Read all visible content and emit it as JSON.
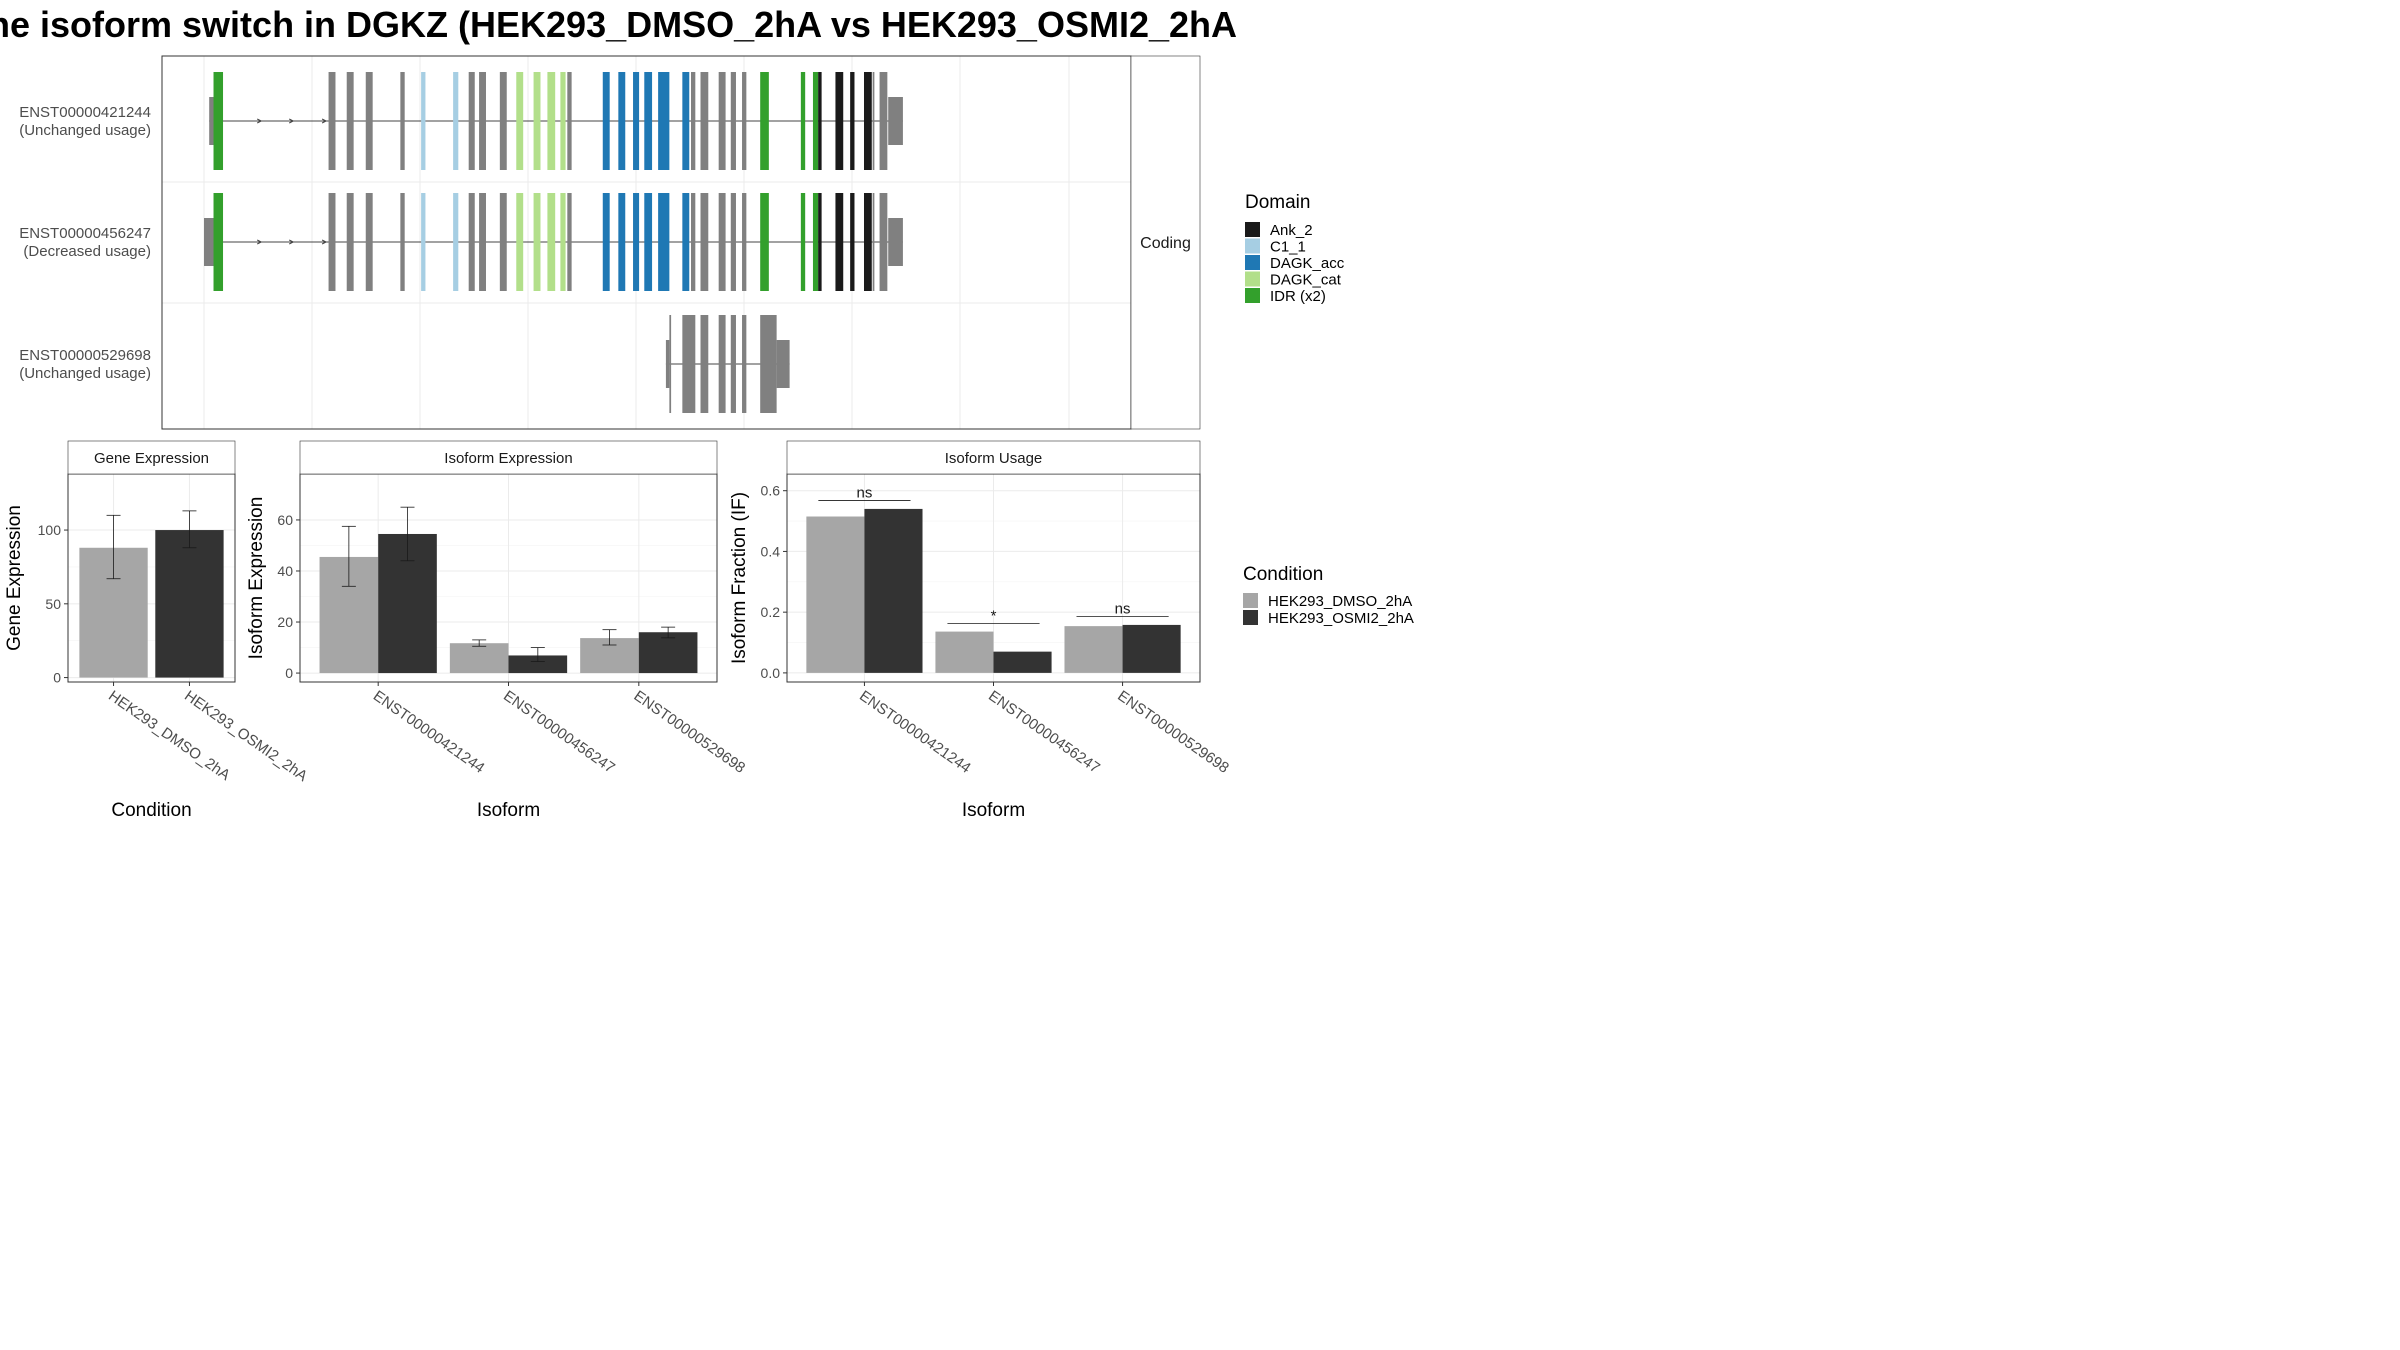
{
  "title": "he isoform switch in DGKZ (HEK293_DMSO_2hA vs HEK293_OSMI2_2hA",
  "colors": {
    "condition_a": "#a6a6a6",
    "condition_b": "#333333",
    "exon_default": "#808080",
    "intron": "#444444"
  },
  "chart_data": [
    {
      "type": "gene-structure",
      "panel_label": "Coding",
      "x_extent": [
        0,
        1000
      ],
      "isoforms": [
        {
          "id": "ENST00000421244",
          "status": "(Unchanged usage)",
          "span": [
            6,
            808
          ],
          "utr": [
            [
              6,
              12
            ],
            [
              791,
              808
            ]
          ],
          "exons": [
            [
              11,
              22,
              "IDR (x2)"
            ],
            [
              144,
              152,
              ""
            ],
            [
              165,
              173,
              ""
            ],
            [
              187,
              195,
              ""
            ],
            [
              227,
              232,
              ""
            ],
            [
              251,
              256,
              "C1_1"
            ],
            [
              288,
              294,
              "C1_1"
            ],
            [
              306,
              313,
              ""
            ],
            [
              318,
              326,
              ""
            ],
            [
              342,
              350,
              ""
            ],
            [
              361,
              369,
              "DAGK_cat"
            ],
            [
              381,
              389,
              "DAGK_cat"
            ],
            [
              397,
              406,
              "DAGK_cat"
            ],
            [
              412,
              418,
              "DAGK_cat"
            ],
            [
              420,
              425,
              ""
            ],
            [
              461,
              469,
              "DAGK_acc"
            ],
            [
              479,
              487,
              "DAGK_acc"
            ],
            [
              496,
              503,
              "DAGK_acc"
            ],
            [
              509,
              518,
              "DAGK_acc"
            ],
            [
              525,
              538,
              "DAGK_acc"
            ],
            [
              553,
              561,
              "DAGK_acc"
            ],
            [
              563,
              568,
              ""
            ],
            [
              574,
              583,
              ""
            ],
            [
              595,
              603,
              ""
            ],
            [
              609,
              615,
              ""
            ],
            [
              622,
              627,
              ""
            ],
            [
              643,
              653,
              "IDR (x2)"
            ],
            [
              690,
              695,
              "IDR (x2)"
            ],
            [
              704,
              710,
              "IDR (x2)"
            ],
            [
              710,
              714,
              "Ank_2"
            ],
            [
              730,
              739,
              "Ank_2"
            ],
            [
              747,
              752,
              "Ank_2"
            ],
            [
              763,
              772,
              "Ank_2"
            ],
            [
              773,
              775,
              ""
            ],
            [
              781,
              790,
              ""
            ]
          ]
        },
        {
          "id": "ENST00000456247",
          "status": "(Decreased usage)",
          "span": [
            0,
            808
          ],
          "utr": [
            [
              0,
              12
            ],
            [
              791,
              808
            ]
          ],
          "exons": [
            [
              11,
              22,
              "IDR (x2)"
            ],
            [
              144,
              152,
              ""
            ],
            [
              165,
              173,
              ""
            ],
            [
              187,
              195,
              ""
            ],
            [
              227,
              232,
              ""
            ],
            [
              251,
              256,
              "C1_1"
            ],
            [
              288,
              294,
              "C1_1"
            ],
            [
              306,
              313,
              ""
            ],
            [
              318,
              326,
              ""
            ],
            [
              342,
              350,
              ""
            ],
            [
              361,
              369,
              "DAGK_cat"
            ],
            [
              381,
              389,
              "DAGK_cat"
            ],
            [
              397,
              406,
              "DAGK_cat"
            ],
            [
              412,
              418,
              "DAGK_cat"
            ],
            [
              420,
              425,
              ""
            ],
            [
              461,
              469,
              "DAGK_acc"
            ],
            [
              479,
              487,
              "DAGK_acc"
            ],
            [
              496,
              503,
              "DAGK_acc"
            ],
            [
              509,
              518,
              "DAGK_acc"
            ],
            [
              525,
              538,
              "DAGK_acc"
            ],
            [
              553,
              561,
              "DAGK_acc"
            ],
            [
              563,
              568,
              ""
            ],
            [
              574,
              583,
              ""
            ],
            [
              595,
              603,
              ""
            ],
            [
              609,
              615,
              ""
            ],
            [
              622,
              627,
              ""
            ],
            [
              643,
              653,
              "IDR (x2)"
            ],
            [
              690,
              695,
              "IDR (x2)"
            ],
            [
              704,
              710,
              "IDR (x2)"
            ],
            [
              710,
              714,
              "Ank_2"
            ],
            [
              730,
              739,
              "Ank_2"
            ],
            [
              747,
              752,
              "Ank_2"
            ],
            [
              763,
              772,
              "Ank_2"
            ],
            [
              773,
              775,
              ""
            ],
            [
              781,
              790,
              ""
            ]
          ]
        },
        {
          "id": "ENST00000529698",
          "status": "(Unchanged usage)",
          "span": [
            534,
            677
          ],
          "utr": [
            [
              534,
              538
            ],
            [
              662,
              677
            ]
          ],
          "exons": [
            [
              538,
              540,
              ""
            ],
            [
              553,
              568,
              ""
            ],
            [
              574,
              583,
              ""
            ],
            [
              595,
              603,
              ""
            ],
            [
              609,
              615,
              ""
            ],
            [
              622,
              627,
              ""
            ],
            [
              643,
              662,
              ""
            ]
          ]
        }
      ],
      "legend": {
        "title": "Domain",
        "items": [
          {
            "label": "Ank_2",
            "color": "#1a1a1a"
          },
          {
            "label": "C1_1",
            "color": "#a6cee3"
          },
          {
            "label": "DAGK_acc",
            "color": "#1f78b4"
          },
          {
            "label": "DAGK_cat",
            "color": "#b2df8a"
          },
          {
            "label": "IDR (x2)",
            "color": "#33a02c"
          }
        ]
      }
    },
    {
      "type": "bar",
      "strip": "Gene Expression",
      "xlabel": "Condition",
      "ylabel": "Gene Expression",
      "ylim": [
        -3,
        138
      ],
      "yticks": [
        0,
        50,
        100
      ],
      "categories": [
        "HEK293_DMSO_2hA",
        "HEK293_OSMI2_2hA"
      ],
      "series": [
        {
          "values": [
            88,
            100
          ],
          "errors": [
            [
              67,
              110
            ],
            [
              88,
              113
            ]
          ]
        }
      ],
      "bar_color_by_category": true
    },
    {
      "type": "bar",
      "strip": "Isoform Expression",
      "xlabel": "Isoform",
      "ylabel": "Isoform Expression",
      "ylim": [
        -3.5,
        78
      ],
      "yticks": [
        0,
        20,
        40,
        60
      ],
      "categories": [
        "ENST00000421244",
        "ENST00000456247",
        "ENST00000529698"
      ],
      "series": [
        {
          "name": "HEK293_DMSO_2hA",
          "values": [
            45.5,
            11.7,
            13.7
          ],
          "errors": [
            [
              34,
              57.5
            ],
            [
              10.5,
              13
            ],
            [
              11,
              17
            ]
          ]
        },
        {
          "name": "HEK293_OSMI2_2hA",
          "values": [
            54.5,
            6.9,
            16
          ],
          "errors": [
            [
              44,
              65
            ],
            [
              4.5,
              10
            ],
            [
              13.8,
              18
            ]
          ]
        }
      ]
    },
    {
      "type": "bar",
      "strip": "Isoform Usage",
      "xlabel": "Isoform",
      "ylabel": "Isoform Fraction (IF)",
      "ylim": [
        -0.03,
        0.655
      ],
      "yticks": [
        "0.0",
        "0.2",
        "0.4",
        "0.6"
      ],
      "categories": [
        "ENST00000421244",
        "ENST00000456247",
        "ENST00000529698"
      ],
      "series": [
        {
          "name": "HEK293_DMSO_2hA",
          "values": [
            0.515,
            0.136,
            0.154
          ]
        },
        {
          "name": "HEK293_OSMI2_2hA",
          "values": [
            0.54,
            0.07,
            0.158
          ]
        }
      ],
      "significance": [
        {
          "label": "ns",
          "y": 0.568
        },
        {
          "label": "*",
          "y": 0.163
        },
        {
          "label": "ns",
          "y": 0.186
        }
      ]
    }
  ],
  "condition_legend": {
    "title": "Condition",
    "items": [
      "HEK293_DMSO_2hA",
      "HEK293_OSMI2_2hA"
    ]
  }
}
